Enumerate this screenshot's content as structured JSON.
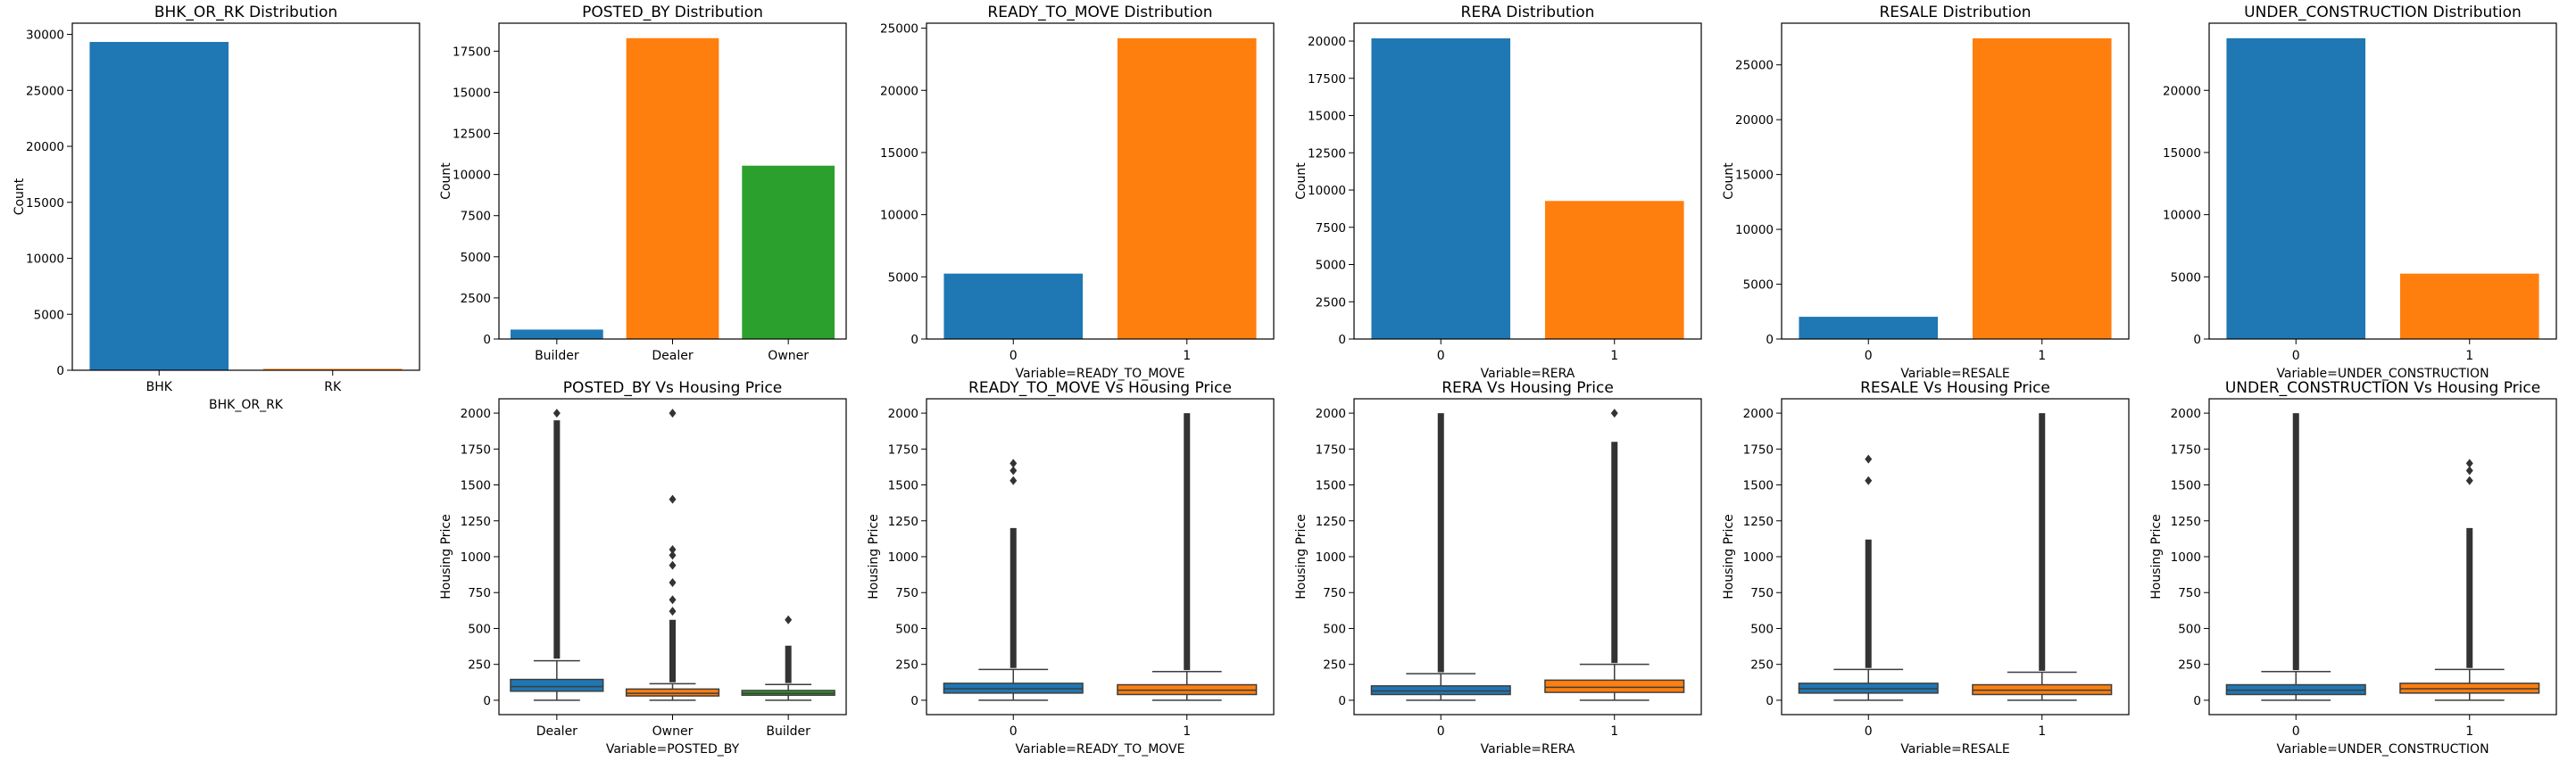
{
  "colors": {
    "blue": "#1f77b4",
    "orange": "#ff7f0e",
    "green": "#2ca02c"
  },
  "chart_data": [
    {
      "id": "bhk_or_rk_dist",
      "type": "bar",
      "title": "BHK_OR_RK Distribution",
      "xlabel": "BHK_OR_RK",
      "ylabel": "Count",
      "categories": [
        "BHK",
        "RK"
      ],
      "values": [
        29325,
        126
      ],
      "yticks": [
        0,
        5000,
        10000,
        15000,
        20000,
        25000,
        30000
      ],
      "ylim": [
        0,
        31000
      ]
    },
    {
      "id": "posted_by_dist",
      "type": "bar",
      "title": "POSTED_BY Distribution",
      "xlabel": "",
      "ylabel": "Count",
      "categories": [
        "Builder",
        "Dealer",
        "Owner"
      ],
      "values": [
        573,
        18291,
        10538
      ],
      "yticks": [
        0,
        2500,
        5000,
        7500,
        10000,
        12500,
        15000,
        17500
      ],
      "ylim": [
        0,
        19200
      ]
    },
    {
      "id": "ready_to_move_dist",
      "type": "bar",
      "title": "READY_TO_MOVE Distribution",
      "xlabel": "Variable=READY_TO_MOVE",
      "ylabel": "",
      "categories": [
        "0",
        "1"
      ],
      "values": [
        5260,
        24191
      ],
      "yticks": [
        0,
        5000,
        10000,
        15000,
        20000,
        25000
      ],
      "ylim": [
        0,
        25400
      ]
    },
    {
      "id": "rera_dist",
      "type": "bar",
      "title": "RERA Distribution",
      "xlabel": "Variable=RERA",
      "ylabel": "Count",
      "categories": [
        "0",
        "1"
      ],
      "values": [
        20183,
        9268
      ],
      "yticks": [
        0,
        2500,
        5000,
        7500,
        10000,
        12500,
        15000,
        17500,
        20000
      ],
      "ylim": [
        0,
        21200
      ]
    },
    {
      "id": "resale_dist",
      "type": "bar",
      "title": "RESALE Distribution",
      "xlabel": "Variable=RESALE",
      "ylabel": "Count",
      "categories": [
        "0",
        "1"
      ],
      "values": [
        2027,
        27424
      ],
      "yticks": [
        0,
        5000,
        10000,
        15000,
        20000,
        25000
      ],
      "ylim": [
        0,
        28800
      ]
    },
    {
      "id": "under_construction_dist",
      "type": "bar",
      "title": "UNDER_CONSTRUCTION Distribution",
      "xlabel": "Variable=UNDER_CONSTRUCTION",
      "ylabel": "",
      "categories": [
        "0",
        "1"
      ],
      "values": [
        24191,
        5260
      ],
      "yticks": [
        0,
        5000,
        10000,
        15000,
        20000
      ],
      "ylim": [
        0,
        25400
      ]
    },
    {
      "id": "posted_by_box",
      "type": "box",
      "title": "POSTED_BY Vs Housing Price",
      "xlabel": "Variable=POSTED_BY",
      "ylabel": "Housing Price",
      "categories": [
        "Dealer",
        "Owner",
        "Builder"
      ],
      "yticks": [
        0,
        250,
        500,
        750,
        1000,
        1250,
        1500,
        1750,
        2000
      ],
      "ylim": [
        -100,
        2100
      ],
      "boxes": [
        {
          "q1": 63,
          "median": 95,
          "q3": 145,
          "wlo": 0,
          "whi": 275,
          "outlier_from": 290,
          "outlier_to": 1950,
          "sparse": [
            2000
          ]
        },
        {
          "q1": 30,
          "median": 48,
          "q3": 78,
          "wlo": 0,
          "whi": 115,
          "outlier_from": 125,
          "outlier_to": 560,
          "sparse": [
            620,
            700,
            820,
            940,
            1010,
            1050,
            1400,
            2000
          ]
        },
        {
          "q1": 35,
          "median": 48,
          "q3": 68,
          "wlo": 0,
          "whi": 110,
          "outlier_from": 120,
          "outlier_to": 380,
          "sparse": [
            560
          ]
        }
      ]
    },
    {
      "id": "ready_to_move_box",
      "type": "box",
      "title": "READY_TO_MOVE Vs Housing Price",
      "xlabel": "Variable=READY_TO_MOVE",
      "ylabel": "Housing Price",
      "categories": [
        "0",
        "1"
      ],
      "yticks": [
        0,
        250,
        500,
        750,
        1000,
        1250,
        1500,
        1750,
        2000
      ],
      "ylim": [
        -100,
        2100
      ],
      "boxes": [
        {
          "q1": 50,
          "median": 80,
          "q3": 118,
          "wlo": 0,
          "whi": 215,
          "outlier_from": 225,
          "outlier_to": 1200,
          "sparse": [
            1530,
            1600,
            1650
          ]
        },
        {
          "q1": 40,
          "median": 70,
          "q3": 108,
          "wlo": 0,
          "whi": 200,
          "outlier_from": 210,
          "outlier_to": 2000,
          "sparse": []
        }
      ]
    },
    {
      "id": "rera_box",
      "type": "box",
      "title": "RERA Vs Housing Price",
      "xlabel": "Variable=RERA",
      "ylabel": "Housing Price",
      "categories": [
        "0",
        "1"
      ],
      "yticks": [
        0,
        250,
        500,
        750,
        1000,
        1250,
        1500,
        1750,
        2000
      ],
      "ylim": [
        -100,
        2100
      ],
      "boxes": [
        {
          "q1": 40,
          "median": 65,
          "q3": 100,
          "wlo": 0,
          "whi": 185,
          "outlier_from": 195,
          "outlier_to": 2000,
          "sparse": []
        },
        {
          "q1": 55,
          "median": 90,
          "q3": 140,
          "wlo": 0,
          "whi": 250,
          "outlier_from": 260,
          "outlier_to": 1800,
          "sparse": [
            2000
          ]
        }
      ]
    },
    {
      "id": "resale_box",
      "type": "box",
      "title": "RESALE Vs Housing Price",
      "xlabel": "Variable=RESALE",
      "ylabel": "Housing Price",
      "categories": [
        "0",
        "1"
      ],
      "yticks": [
        0,
        250,
        500,
        750,
        1000,
        1250,
        1500,
        1750,
        2000
      ],
      "ylim": [
        -100,
        2100
      ],
      "boxes": [
        {
          "q1": 50,
          "median": 80,
          "q3": 118,
          "wlo": 0,
          "whi": 215,
          "outlier_from": 225,
          "outlier_to": 1120,
          "sparse": [
            1530,
            1680
          ]
        },
        {
          "q1": 40,
          "median": 70,
          "q3": 108,
          "wlo": 0,
          "whi": 195,
          "outlier_from": 205,
          "outlier_to": 2000,
          "sparse": []
        }
      ]
    },
    {
      "id": "under_construction_box",
      "type": "box",
      "title": "UNDER_CONSTRUCTION Vs Housing Price",
      "xlabel": "Variable=UNDER_CONSTRUCTION",
      "ylabel": "Housing Price",
      "categories": [
        "0",
        "1"
      ],
      "yticks": [
        0,
        250,
        500,
        750,
        1000,
        1250,
        1500,
        1750,
        2000
      ],
      "ylim": [
        -100,
        2100
      ],
      "boxes": [
        {
          "q1": 40,
          "median": 70,
          "q3": 108,
          "wlo": 0,
          "whi": 200,
          "outlier_from": 210,
          "outlier_to": 2000,
          "sparse": []
        },
        {
          "q1": 50,
          "median": 80,
          "q3": 118,
          "wlo": 0,
          "whi": 215,
          "outlier_from": 225,
          "outlier_to": 1200,
          "sparse": [
            1530,
            1600,
            1650
          ]
        }
      ]
    }
  ]
}
